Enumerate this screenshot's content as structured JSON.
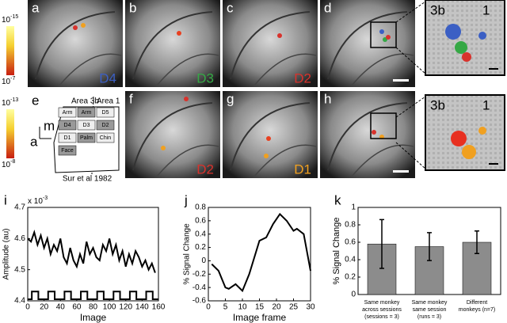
{
  "colorbars": [
    {
      "top": {
        "base": "10",
        "exp": "-15"
      },
      "bottom": {
        "base": "10",
        "exp": "-7"
      }
    },
    {
      "top": {
        "base": "10",
        "exp": "-13"
      },
      "bottom": {
        "base": "10",
        "exp": "-8"
      }
    }
  ],
  "panels": [
    {
      "letter": "a",
      "label": "D4",
      "color": "#3b5fc4"
    },
    {
      "letter": "b",
      "label": "D3",
      "color": "#35a845"
    },
    {
      "letter": "c",
      "label": "D2",
      "color": "#d8322c"
    },
    {
      "letter": "d"
    },
    {
      "letter": "f",
      "label": "D2",
      "color": "#d8322c"
    },
    {
      "letter": "g",
      "label": "D1",
      "color": "#f0a020"
    },
    {
      "letter": "h"
    }
  ],
  "insets": [
    {
      "labels": [
        "3b",
        "1"
      ]
    },
    {
      "labels": [
        "3b",
        "1"
      ]
    }
  ],
  "diagram": {
    "letter": "e",
    "area_3b": "Area 3b",
    "area_1": "Area 1",
    "m": "m",
    "a": "a",
    "citation": "Sur et al 1982",
    "regions": [
      "Arm",
      "Arm",
      "D5",
      "D4",
      "D3",
      "D2",
      "D1",
      "Palm",
      "Chin",
      "Face"
    ]
  },
  "chart_data": [
    {
      "type": "line",
      "letter": "i",
      "x_label": "Image",
      "y_label": "Amplitude (au)",
      "multiplier": {
        "base": "x 10",
        "exp": "-3"
      },
      "xlim": [
        0,
        160
      ],
      "xticks": [
        0,
        20,
        40,
        60,
        80,
        100,
        120,
        140,
        160
      ],
      "ylim": [
        4.4,
        4.7
      ],
      "yticks": [
        4.4,
        4.5,
        4.6,
        4.7
      ],
      "series": [
        {
          "color": "#000000",
          "x": [
            0,
            4,
            8,
            12,
            16,
            20,
            24,
            28,
            32,
            36,
            40,
            44,
            48,
            52,
            56,
            60,
            64,
            68,
            72,
            76,
            80,
            84,
            88,
            92,
            96,
            100,
            104,
            108,
            112,
            116,
            120,
            124,
            128,
            132,
            136,
            140,
            144,
            148,
            152,
            156
          ],
          "values": [
            4.6,
            4.59,
            4.62,
            4.58,
            4.61,
            4.57,
            4.6,
            4.55,
            4.58,
            4.56,
            4.6,
            4.54,
            4.52,
            4.57,
            4.53,
            4.51,
            4.55,
            4.52,
            4.59,
            4.55,
            4.57,
            4.54,
            4.53,
            4.58,
            4.56,
            4.6,
            4.55,
            4.58,
            4.53,
            4.56,
            4.51,
            4.55,
            4.52,
            4.56,
            4.54,
            4.51,
            4.53,
            4.5,
            4.52,
            4.49
          ]
        },
        {
          "color": "#000000",
          "x": [
            0,
            5,
            5,
            13,
            13,
            25,
            25,
            33,
            33,
            45,
            45,
            53,
            53,
            65,
            65,
            73,
            73,
            85,
            85,
            93,
            93,
            105,
            105,
            113,
            113,
            125,
            125,
            133,
            133,
            145,
            145,
            153,
            153,
            160
          ],
          "values": [
            4.405,
            4.405,
            4.43,
            4.43,
            4.405,
            4.405,
            4.43,
            4.43,
            4.405,
            4.405,
            4.43,
            4.43,
            4.405,
            4.405,
            4.43,
            4.43,
            4.405,
            4.405,
            4.43,
            4.43,
            4.405,
            4.405,
            4.43,
            4.43,
            4.405,
            4.405,
            4.43,
            4.43,
            4.405,
            4.405,
            4.43,
            4.43,
            4.405,
            4.405
          ]
        }
      ]
    },
    {
      "type": "line",
      "letter": "j",
      "x_label": "Image frame",
      "y_label": "% Signal Change",
      "xlim": [
        0,
        30
      ],
      "xticks": [
        0,
        5,
        10,
        15,
        20,
        25,
        30
      ],
      "ylim": [
        -0.6,
        0.8
      ],
      "yticks": [
        -0.6,
        -0.4,
        -0.2,
        0,
        0.2,
        0.4,
        0.6,
        0.8
      ],
      "series": [
        {
          "color": "#000000",
          "x": [
            1,
            3,
            5,
            6,
            8,
            10,
            12,
            15,
            17,
            19,
            21,
            23,
            25,
            26,
            28,
            30
          ],
          "values": [
            -0.05,
            -0.15,
            -0.4,
            -0.42,
            -0.35,
            -0.45,
            -0.2,
            0.3,
            0.35,
            0.55,
            0.7,
            0.6,
            0.45,
            0.48,
            0.4,
            -0.15
          ]
        }
      ]
    },
    {
      "type": "bar",
      "letter": "k",
      "y_label": "% Signal Change",
      "color": "#8c8c8c",
      "categories": [
        "Same monkey\nacross sessions\n(sessions = 3)",
        "Same monkey\nsame session\n(runs = 3)",
        "Different\nmonkeys (n=7)"
      ],
      "values": [
        0.58,
        0.55,
        0.6
      ],
      "errors": [
        0.28,
        0.16,
        0.13
      ],
      "ylim": [
        0,
        1
      ],
      "yticks": [
        0,
        0.2,
        0.4,
        0.6,
        0.8,
        1
      ]
    }
  ]
}
